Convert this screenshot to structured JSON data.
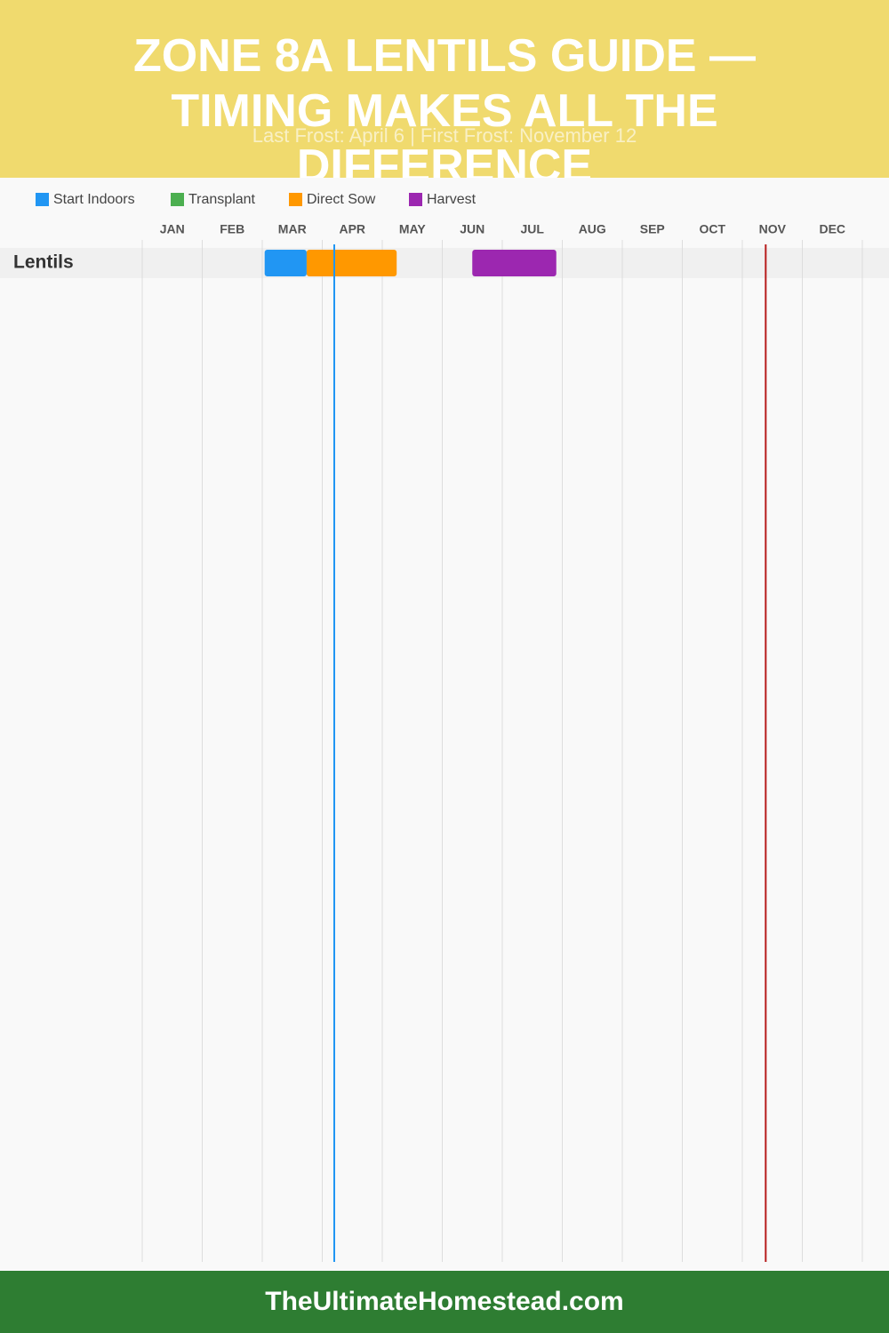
{
  "chart_data": {
    "type": "gantt",
    "title": "Zone 8a Lentils Guide — Timing Makes All the Difference",
    "subtitle": "Last Frost: April 6 | First Frost: November 12",
    "footer": "TheUltimateHomestead.com",
    "categories": [
      "Lentils"
    ],
    "xlim": [
      0,
      12
    ],
    "xticks": [
      {
        "value": 0,
        "label": "JAN"
      },
      {
        "value": 1,
        "label": "FEB"
      },
      {
        "value": 2,
        "label": "MAR"
      },
      {
        "value": 3,
        "label": "APR"
      },
      {
        "value": 4,
        "label": "MAY"
      },
      {
        "value": 5,
        "label": "JUN"
      },
      {
        "value": 6,
        "label": "JUL"
      },
      {
        "value": 7,
        "label": "AUG"
      },
      {
        "value": 8,
        "label": "SEP"
      },
      {
        "value": 9,
        "label": "OCT"
      },
      {
        "value": 10,
        "label": "NOV"
      },
      {
        "value": 11,
        "label": "DEC"
      }
    ],
    "grid": true,
    "series": [
      {
        "name": "Start Indoors",
        "color": "#2196f3",
        "values": [
          [
            2.04,
            2.74
          ]
        ]
      },
      {
        "name": "Transplant",
        "color": "#4caf50",
        "values": [
          null
        ]
      },
      {
        "name": "Direct Sow",
        "color": "#ff9800",
        "values": [
          [
            2.74,
            4.24
          ]
        ]
      },
      {
        "name": "Harvest",
        "color": "#9c27b0",
        "values": [
          [
            5.5,
            6.9
          ]
        ]
      }
    ],
    "frost_lines": [
      {
        "value": 3.2,
        "color": "#2196f3"
      },
      {
        "value": 10.39,
        "color": "#b71c1c"
      }
    ]
  }
}
